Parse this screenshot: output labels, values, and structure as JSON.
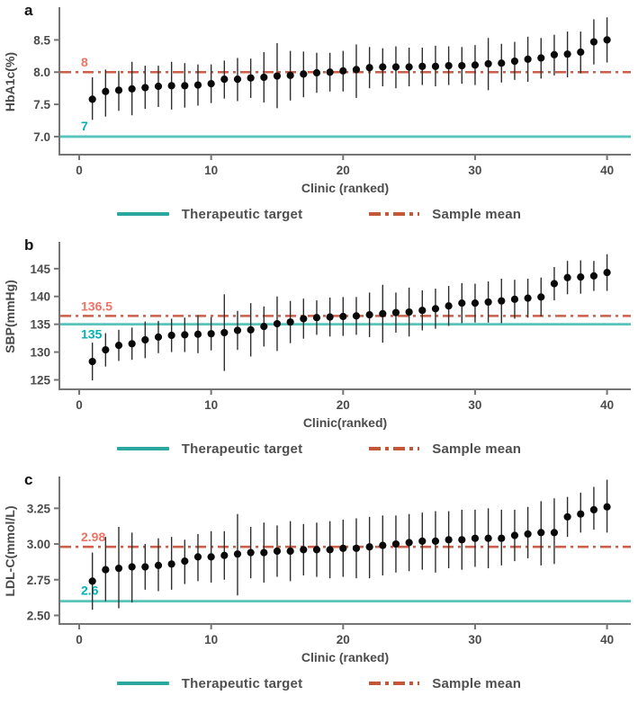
{
  "figure": {
    "legend": {
      "target_label": "Therapeutic target",
      "mean_label": "Sample mean"
    },
    "colors": {
      "target_line": "#58c4bc",
      "legend_target": "#2aa79f",
      "target_label": "#00b1b7",
      "mean_line": "#cd5f4a",
      "legend_mean": "#c25837",
      "mean_label": "#ef7365",
      "point": "#0a0a0a",
      "error_bar": "#2e2e2e",
      "axis_text": "#4b4b4b",
      "axis_line": "#757575",
      "panel_letter": "#111111"
    }
  },
  "chart_data": [
    {
      "panel_letter": "a",
      "type": "scatter",
      "title": "",
      "ylabel": "HbA1c(%)",
      "xlabel": "Clinic (ranked)",
      "x": [
        1,
        2,
        3,
        4,
        5,
        6,
        7,
        8,
        9,
        10,
        11,
        12,
        13,
        14,
        15,
        16,
        17,
        18,
        19,
        20,
        21,
        22,
        23,
        24,
        25,
        26,
        27,
        28,
        29,
        30,
        31,
        32,
        33,
        34,
        35,
        36,
        37,
        38,
        39,
        40
      ],
      "y": [
        7.58,
        7.7,
        7.72,
        7.74,
        7.76,
        7.78,
        7.79,
        7.79,
        7.8,
        7.82,
        7.89,
        7.89,
        7.91,
        7.92,
        7.94,
        7.95,
        7.97,
        7.99,
        8.0,
        8.02,
        8.04,
        8.07,
        8.08,
        8.08,
        8.08,
        8.09,
        8.09,
        8.1,
        8.1,
        8.11,
        8.13,
        8.14,
        8.17,
        8.2,
        8.22,
        8.27,
        8.28,
        8.31,
        8.47,
        8.5
      ],
      "y_lo": [
        7.26,
        7.31,
        7.4,
        7.33,
        7.43,
        7.46,
        7.42,
        7.45,
        7.48,
        7.52,
        7.59,
        7.55,
        7.6,
        7.53,
        7.44,
        7.56,
        7.61,
        7.68,
        7.7,
        7.7,
        7.6,
        7.75,
        7.78,
        7.75,
        7.78,
        7.8,
        7.78,
        7.8,
        7.82,
        7.8,
        7.72,
        7.84,
        7.88,
        7.85,
        7.9,
        7.95,
        7.92,
        7.98,
        8.12,
        8.15
      ],
      "y_hi": [
        7.92,
        8.04,
        8.02,
        8.16,
        8.1,
        8.1,
        8.16,
        8.14,
        8.12,
        8.12,
        8.18,
        8.22,
        8.21,
        8.31,
        8.45,
        8.33,
        8.32,
        8.3,
        8.3,
        8.33,
        8.43,
        8.39,
        8.37,
        8.4,
        8.38,
        8.38,
        8.41,
        8.4,
        8.39,
        8.42,
        8.53,
        8.44,
        8.47,
        8.55,
        8.53,
        8.58,
        8.63,
        8.63,
        8.82,
        8.85
      ],
      "ytick_values": [
        7.0,
        7.5,
        8.0,
        8.5
      ],
      "ytick_labels": [
        "7.0",
        "7.5",
        "8.0",
        "8.5"
      ],
      "xtick_values": [
        0,
        10,
        20,
        30,
        40
      ],
      "xtick_labels": [
        "0",
        "10",
        "20",
        "30",
        "40"
      ],
      "ylim": [
        6.72,
        8.98
      ],
      "xlim": [
        -1.5,
        41.8
      ],
      "target": {
        "value": 7,
        "label": "7",
        "label_side": "above"
      },
      "mean": {
        "value": 8,
        "label": "8"
      },
      "legend": [
        "Therapeutic target",
        "Sample mean"
      ]
    },
    {
      "panel_letter": "b",
      "type": "scatter",
      "title": "",
      "ylabel": "SBP(mmHg)",
      "xlabel": "Clinic(ranked)",
      "x": [
        1,
        2,
        3,
        4,
        5,
        6,
        7,
        8,
        9,
        10,
        11,
        12,
        13,
        14,
        15,
        16,
        17,
        18,
        19,
        20,
        21,
        22,
        23,
        24,
        25,
        26,
        27,
        28,
        29,
        30,
        31,
        32,
        33,
        34,
        35,
        36,
        37,
        38,
        39,
        40
      ],
      "y": [
        128.3,
        130.4,
        131.2,
        131.5,
        132.2,
        132.7,
        133.0,
        133.1,
        133.2,
        133.3,
        133.5,
        133.9,
        134.0,
        134.6,
        135.1,
        135.4,
        136.0,
        136.2,
        136.3,
        136.4,
        136.5,
        136.7,
        136.9,
        137.1,
        137.2,
        137.5,
        137.8,
        138.3,
        138.8,
        138.8,
        139.0,
        139.2,
        139.5,
        139.7,
        139.9,
        142.3,
        143.4,
        143.5,
        143.7,
        144.3
      ],
      "y_lo": [
        124.9,
        127.4,
        128.4,
        128.6,
        128.9,
        129.8,
        130.0,
        130.0,
        129.8,
        130.3,
        126.6,
        130.4,
        129.2,
        131.0,
        130.2,
        131.6,
        132.4,
        133.1,
        132.8,
        132.9,
        133.1,
        132.7,
        131.7,
        133.5,
        132.8,
        133.9,
        134.2,
        134.7,
        135.2,
        135.3,
        135.3,
        135.2,
        136.0,
        136.2,
        136.4,
        139.3,
        140.4,
        140.5,
        141.0,
        141.0
      ],
      "y_hi": [
        131.7,
        133.4,
        134.0,
        134.4,
        135.5,
        135.6,
        136.0,
        136.2,
        136.6,
        136.3,
        140.4,
        137.4,
        138.8,
        138.2,
        140.0,
        139.2,
        139.6,
        139.3,
        139.8,
        139.9,
        139.9,
        140.7,
        142.1,
        140.7,
        141.6,
        141.1,
        141.4,
        141.9,
        142.4,
        142.3,
        142.7,
        143.2,
        143.0,
        143.2,
        143.4,
        145.3,
        146.4,
        146.5,
        146.4,
        147.6
      ],
      "ytick_values": [
        125,
        130,
        135,
        140,
        145
      ],
      "ytick_labels": [
        "125",
        "130",
        "135",
        "140",
        "145"
      ],
      "xtick_values": [
        0,
        10,
        20,
        30,
        40
      ],
      "xtick_labels": [
        "0",
        "10",
        "20",
        "30",
        "40"
      ],
      "ylim": [
        123.3,
        149.5
      ],
      "xlim": [
        -1.5,
        41.8
      ],
      "target": {
        "value": 135,
        "label": "135",
        "label_side": "below"
      },
      "mean": {
        "value": 136.5,
        "label": "136.5"
      },
      "legend": [
        "Therapeutic target",
        "Sample mean"
      ]
    },
    {
      "panel_letter": "c",
      "type": "scatter",
      "title": "",
      "ylabel": "LDL-C(mmol/L)",
      "xlabel": "Clinic (ranked)",
      "x": [
        1,
        2,
        3,
        4,
        5,
        6,
        7,
        8,
        9,
        10,
        11,
        12,
        13,
        14,
        15,
        16,
        17,
        18,
        19,
        20,
        21,
        22,
        23,
        24,
        25,
        26,
        27,
        28,
        29,
        30,
        31,
        32,
        33,
        34,
        35,
        36,
        37,
        38,
        39,
        40
      ],
      "y": [
        2.74,
        2.82,
        2.83,
        2.84,
        2.84,
        2.85,
        2.86,
        2.88,
        2.91,
        2.91,
        2.92,
        2.93,
        2.94,
        2.94,
        2.95,
        2.95,
        2.96,
        2.96,
        2.96,
        2.97,
        2.97,
        2.98,
        2.99,
        3.0,
        3.01,
        3.02,
        3.02,
        3.03,
        3.03,
        3.04,
        3.04,
        3.04,
        3.06,
        3.07,
        3.08,
        3.08,
        3.19,
        3.21,
        3.24,
        3.26
      ],
      "y_lo": [
        2.54,
        2.6,
        2.55,
        2.59,
        2.68,
        2.67,
        2.68,
        2.72,
        2.74,
        2.73,
        2.75,
        2.64,
        2.76,
        2.73,
        2.77,
        2.74,
        2.78,
        2.77,
        2.76,
        2.77,
        2.76,
        2.76,
        2.78,
        2.8,
        2.81,
        2.82,
        2.8,
        2.83,
        2.82,
        2.84,
        2.83,
        2.85,
        2.88,
        2.9,
        2.85,
        2.86,
        3.05,
        3.08,
        3.1,
        3.08
      ],
      "y_hi": [
        2.94,
        3.05,
        3.12,
        3.08,
        3.0,
        3.04,
        3.05,
        3.03,
        3.07,
        3.09,
        3.09,
        3.21,
        3.12,
        3.15,
        3.13,
        3.16,
        3.14,
        3.15,
        3.16,
        3.17,
        3.18,
        3.19,
        3.2,
        3.2,
        3.21,
        3.22,
        3.23,
        3.23,
        3.24,
        3.24,
        3.25,
        3.24,
        3.24,
        3.26,
        3.3,
        3.32,
        3.33,
        3.36,
        3.4,
        3.45
      ],
      "ytick_values": [
        2.5,
        2.75,
        3.0,
        3.25
      ],
      "ytick_labels": [
        "2.50",
        "2.75",
        "3.00",
        "3.25"
      ],
      "xtick_values": [
        0,
        10,
        20,
        30,
        40
      ],
      "xtick_labels": [
        "0",
        "10",
        "20",
        "30",
        "40"
      ],
      "ylim": [
        2.44,
        3.46
      ],
      "xlim": [
        -1.5,
        41.8
      ],
      "target": {
        "value": 2.6,
        "label": "2.6",
        "label_side": "above"
      },
      "mean": {
        "value": 2.98,
        "label": "2.98"
      },
      "legend": [
        "Therapeutic target",
        "Sample mean"
      ]
    }
  ]
}
